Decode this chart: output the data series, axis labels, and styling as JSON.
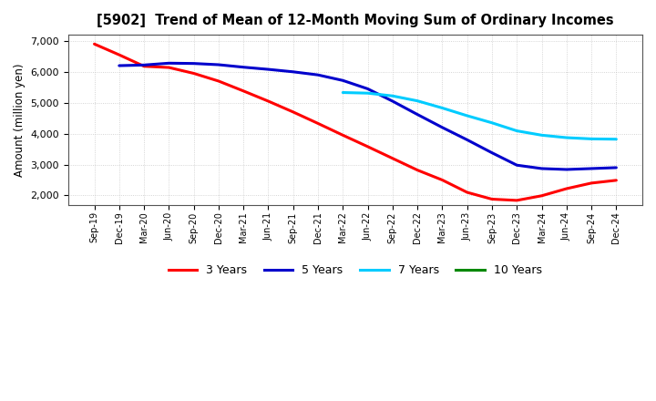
{
  "title": "[5902]  Trend of Mean of 12-Month Moving Sum of Ordinary Incomes",
  "ylabel": "Amount (million yen)",
  "background_color": "#ffffff",
  "grid_color": "#bbbbbb",
  "x_labels": [
    "Sep-19",
    "Dec-19",
    "Mar-20",
    "Jun-20",
    "Sep-20",
    "Dec-20",
    "Mar-21",
    "Jun-21",
    "Sep-21",
    "Dec-21",
    "Mar-22",
    "Jun-22",
    "Sep-22",
    "Dec-22",
    "Mar-23",
    "Jun-23",
    "Sep-23",
    "Dec-23",
    "Mar-24",
    "Jun-24",
    "Sep-24",
    "Dec-24"
  ],
  "ylim": [
    1700,
    7200
  ],
  "yticks": [
    2000,
    3000,
    4000,
    5000,
    6000,
    7000
  ],
  "series": {
    "3 Years": {
      "color": "#ff0000",
      "values": [
        6900,
        6550,
        6180,
        6140,
        5950,
        5700,
        5380,
        5050,
        4700,
        4330,
        3950,
        3580,
        3200,
        2820,
        2500,
        2100,
        1880,
        1840,
        1990,
        2220,
        2400,
        2490
      ]
    },
    "5 Years": {
      "color": "#0000cc",
      "values": [
        null,
        6200,
        6220,
        6280,
        6270,
        6230,
        6150,
        6080,
        6000,
        5900,
        5720,
        5450,
        5050,
        4620,
        4200,
        3800,
        3380,
        2980,
        2870,
        2840,
        2870,
        2900
      ]
    },
    "7 Years": {
      "color": "#00ccff",
      "values": [
        null,
        null,
        null,
        null,
        null,
        null,
        null,
        null,
        null,
        null,
        5330,
        5310,
        5220,
        5060,
        4830,
        4580,
        4350,
        4090,
        3950,
        3870,
        3830,
        3820
      ]
    },
    "10 Years": {
      "color": "#008800",
      "values": [
        null,
        null,
        null,
        null,
        null,
        null,
        null,
        null,
        null,
        null,
        null,
        null,
        null,
        null,
        null,
        null,
        null,
        null,
        null,
        null,
        null,
        null
      ]
    }
  },
  "legend_labels": [
    "3 Years",
    "5 Years",
    "7 Years",
    "10 Years"
  ],
  "legend_colors": [
    "#ff0000",
    "#0000cc",
    "#00ccff",
    "#008800"
  ]
}
